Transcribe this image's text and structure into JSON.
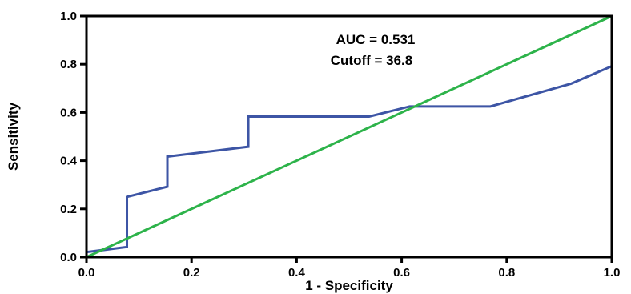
{
  "chart_data": {
    "type": "line",
    "xlabel": "1 - Specificity",
    "ylabel": "Sensitivity",
    "xlim": [
      0,
      1
    ],
    "ylim": [
      0,
      1
    ],
    "xticks": [
      "0.0",
      "0.2",
      "0.4",
      "0.6",
      "0.8",
      "1.0"
    ],
    "yticks": [
      "0.0",
      "0.2",
      "0.4",
      "0.6",
      "0.8",
      "1.0"
    ],
    "annotations": [
      "AUC = 0.531",
      "Cutoff = 36.8"
    ],
    "grid": false,
    "series": [
      {
        "color": "#3d55a5",
        "x": [
          0,
          0,
          0.077,
          0.077,
          0.154,
          0.154,
          0.308,
          0.308,
          0.538,
          0.615,
          0.769,
          0.923,
          1.0,
          1.0
        ],
        "y": [
          0,
          0.021,
          0.042,
          0.25,
          0.292,
          0.417,
          0.458,
          0.583,
          0.583,
          0.625,
          0.625,
          0.72,
          0.792,
          1.0
        ]
      },
      {
        "color": "#2db34a",
        "x": [
          0,
          1
        ],
        "y": [
          0,
          1
        ]
      }
    ]
  }
}
